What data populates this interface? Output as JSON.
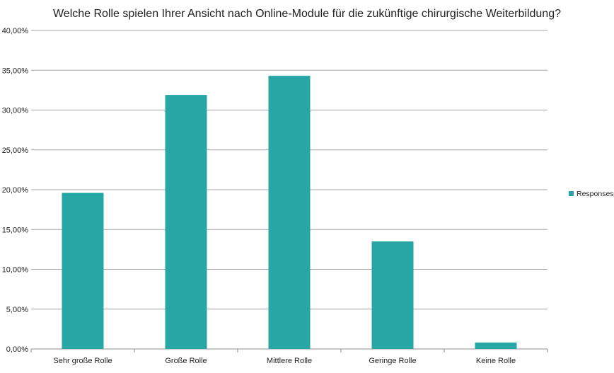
{
  "chart_data": {
    "type": "bar",
    "title": "Welche Rolle spielen Ihrer Ansicht nach Online-Module für die zukünftige chirurgische Weiterbildung?",
    "categories": [
      "Sehr große Rolle",
      "Große Rolle",
      "Mittlere Rolle",
      "Geringe Rolle",
      "Keine Rolle"
    ],
    "series": [
      {
        "name": "Responses",
        "values": [
          19.6,
          31.9,
          34.3,
          13.5,
          0.8
        ]
      }
    ],
    "ylim": [
      0,
      40
    ],
    "yticks": [
      "0,00%",
      "5,00%",
      "10,00%",
      "15,00%",
      "20,00%",
      "25,00%",
      "30,00%",
      "35,00%",
      "40,00%"
    ],
    "grid": true,
    "legend_position": "right",
    "bar_color": "#26a7a6"
  }
}
